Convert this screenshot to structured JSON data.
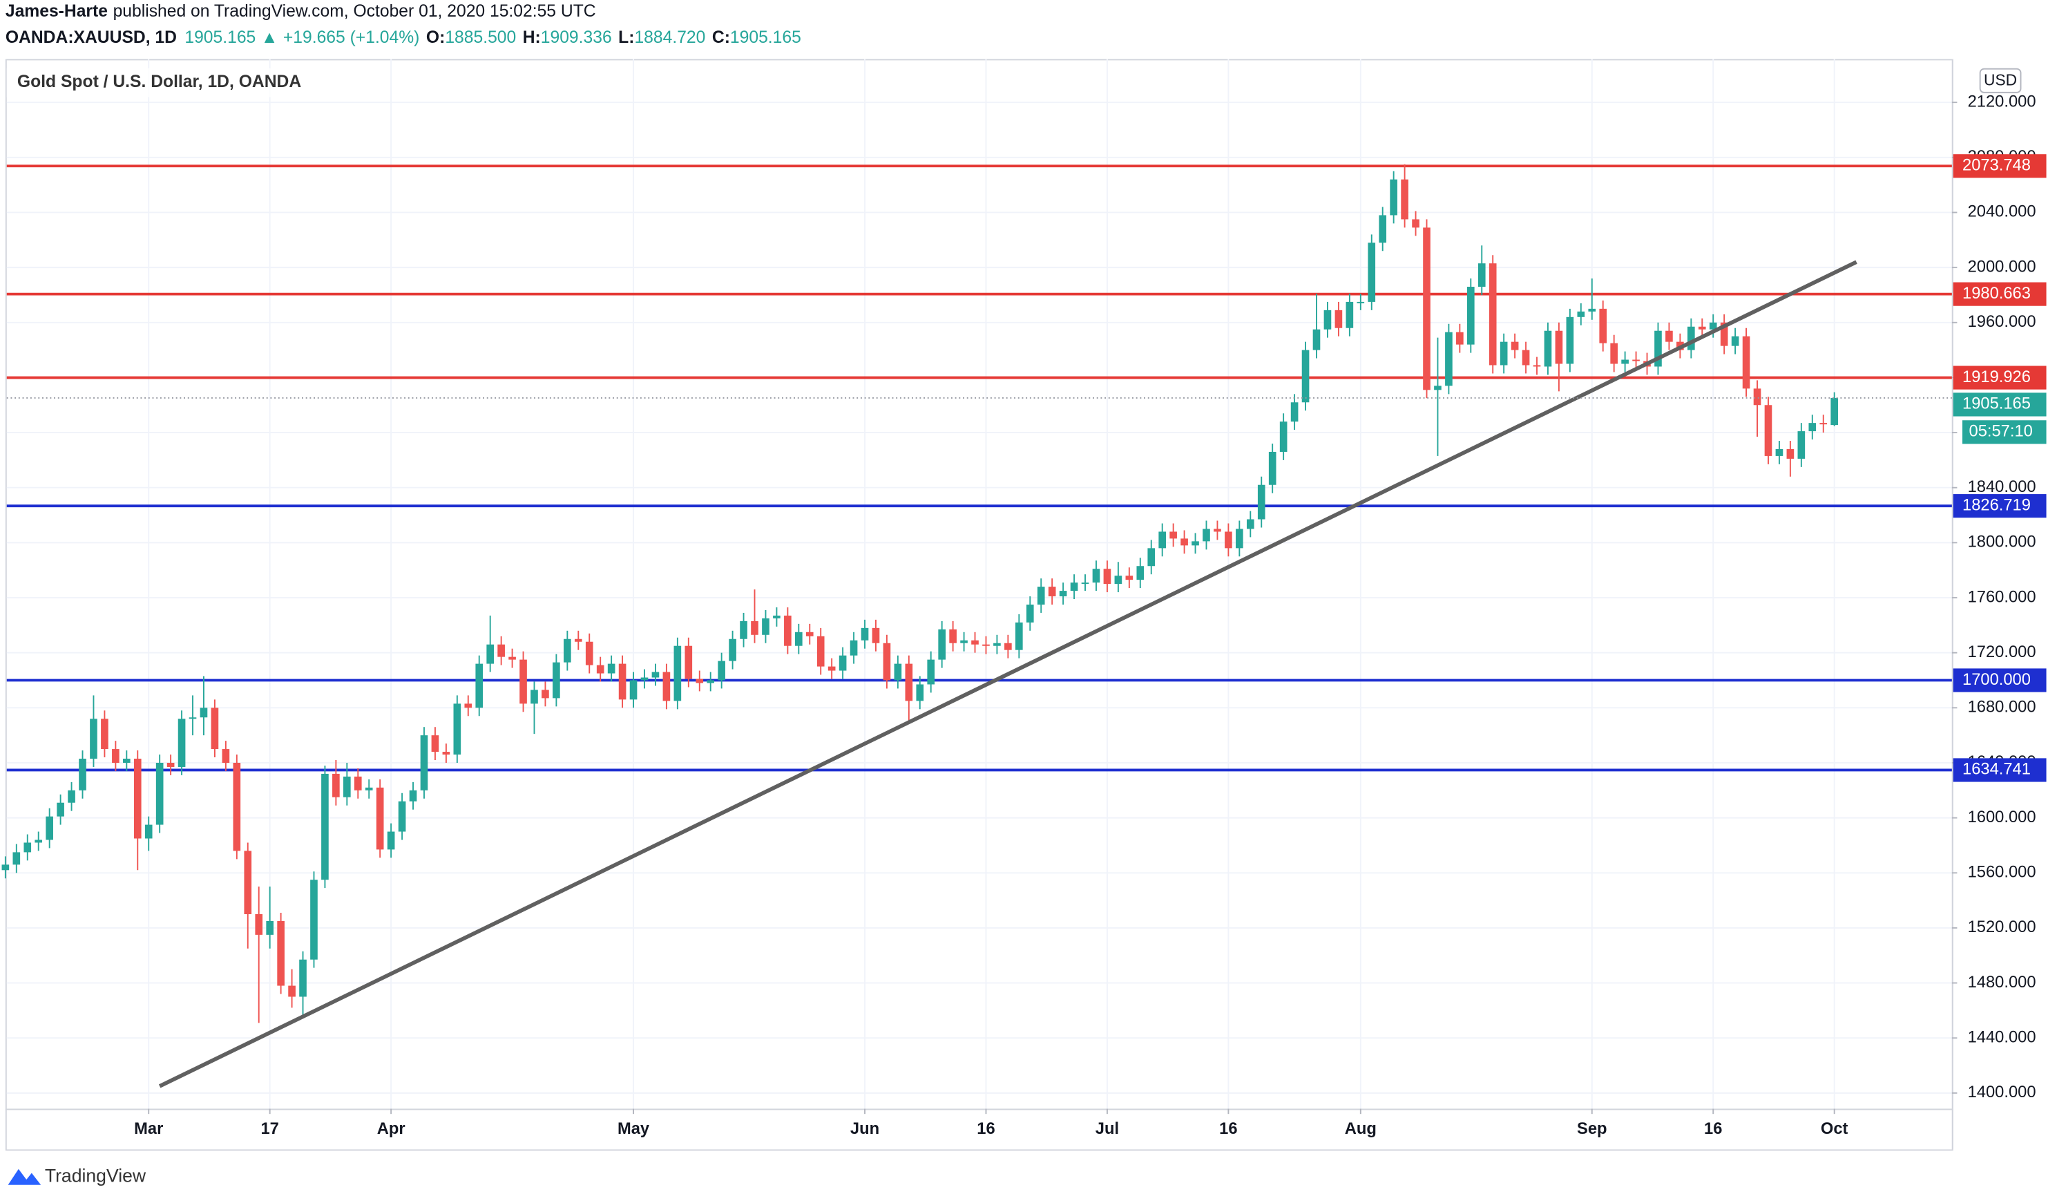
{
  "header": {
    "author": "James-Harte",
    "published": "published on TradingView.com, October 01, 2020 15:02:55 UTC",
    "symbol": "OANDA:XAUUSD, 1D",
    "last": "1905.165",
    "change": "+19.665 (+1.04%)",
    "ohlc": [
      {
        "label": "O:",
        "value": "1885.500"
      },
      {
        "label": "H:",
        "value": "1909.336"
      },
      {
        "label": "L:",
        "value": "1884.720"
      },
      {
        "label": "C:",
        "value": "1905.165"
      }
    ],
    "footer": "TradingView"
  },
  "chart_data": {
    "type": "candlestick",
    "title": "Gold Spot / U.S. Dollar, 1D, OANDA",
    "currency": "USD",
    "countdown": "05:57:10",
    "up_color": "#26a69a",
    "down_color": "#ef5350",
    "grid": true,
    "x": [
      "2020-02-12",
      "2020-02-13",
      "2020-02-14",
      "2020-02-17",
      "2020-02-18",
      "2020-02-19",
      "2020-02-20",
      "2020-02-21",
      "2020-02-24",
      "2020-02-25",
      "2020-02-26",
      "2020-02-27",
      "2020-02-28",
      "2020-03-02",
      "2020-03-03",
      "2020-03-04",
      "2020-03-05",
      "2020-03-06",
      "2020-03-09",
      "2020-03-10",
      "2020-03-11",
      "2020-03-12",
      "2020-03-13",
      "2020-03-16",
      "2020-03-17",
      "2020-03-18",
      "2020-03-19",
      "2020-03-20",
      "2020-03-23",
      "2020-03-24",
      "2020-03-25",
      "2020-03-26",
      "2020-03-27",
      "2020-03-30",
      "2020-03-31",
      "2020-04-01",
      "2020-04-02",
      "2020-04-03",
      "2020-04-06",
      "2020-04-07",
      "2020-04-08",
      "2020-04-09",
      "2020-04-10",
      "2020-04-13",
      "2020-04-14",
      "2020-04-15",
      "2020-04-16",
      "2020-04-17",
      "2020-04-20",
      "2020-04-21",
      "2020-04-22",
      "2020-04-23",
      "2020-04-24",
      "2020-04-27",
      "2020-04-28",
      "2020-04-29",
      "2020-04-30",
      "2020-05-01",
      "2020-05-04",
      "2020-05-05",
      "2020-05-06",
      "2020-05-07",
      "2020-05-08",
      "2020-05-11",
      "2020-05-12",
      "2020-05-13",
      "2020-05-14",
      "2020-05-15",
      "2020-05-18",
      "2020-05-19",
      "2020-05-20",
      "2020-05-21",
      "2020-05-22",
      "2020-05-25",
      "2020-05-26",
      "2020-05-27",
      "2020-05-28",
      "2020-05-29",
      "2020-06-01",
      "2020-06-02",
      "2020-06-03",
      "2020-06-04",
      "2020-06-05",
      "2020-06-08",
      "2020-06-09",
      "2020-06-10",
      "2020-06-11",
      "2020-06-12",
      "2020-06-15",
      "2020-06-16",
      "2020-06-17",
      "2020-06-18",
      "2020-06-19",
      "2020-06-22",
      "2020-06-23",
      "2020-06-24",
      "2020-06-25",
      "2020-06-26",
      "2020-06-29",
      "2020-06-30",
      "2020-07-01",
      "2020-07-02",
      "2020-07-03",
      "2020-07-06",
      "2020-07-07",
      "2020-07-08",
      "2020-07-09",
      "2020-07-10",
      "2020-07-13",
      "2020-07-14",
      "2020-07-15",
      "2020-07-16",
      "2020-07-17",
      "2020-07-20",
      "2020-07-21",
      "2020-07-22",
      "2020-07-23",
      "2020-07-24",
      "2020-07-27",
      "2020-07-28",
      "2020-07-29",
      "2020-07-30",
      "2020-07-31",
      "2020-08-03",
      "2020-08-04",
      "2020-08-05",
      "2020-08-06",
      "2020-08-07",
      "2020-08-10",
      "2020-08-11",
      "2020-08-12",
      "2020-08-13",
      "2020-08-14",
      "2020-08-17",
      "2020-08-18",
      "2020-08-19",
      "2020-08-20",
      "2020-08-21",
      "2020-08-24",
      "2020-08-25",
      "2020-08-26",
      "2020-08-27",
      "2020-08-28",
      "2020-08-31",
      "2020-09-01",
      "2020-09-02",
      "2020-09-03",
      "2020-09-04",
      "2020-09-07",
      "2020-09-08",
      "2020-09-09",
      "2020-09-10",
      "2020-09-11",
      "2020-09-14",
      "2020-09-15",
      "2020-09-16",
      "2020-09-17",
      "2020-09-18",
      "2020-09-21",
      "2020-09-22",
      "2020-09-23",
      "2020-09-24",
      "2020-09-25",
      "2020-09-28",
      "2020-09-29",
      "2020-09-30",
      "2020-10-01"
    ],
    "open": [
      1562,
      1566,
      1575,
      1582,
      1584,
      1601,
      1611,
      1620,
      1643,
      1672,
      1650,
      1640,
      1643,
      1585,
      1595,
      1640,
      1637,
      1672,
      1673,
      1680,
      1650,
      1640,
      1576,
      1530,
      1515,
      1525,
      1478,
      1470,
      1497,
      1555,
      1632,
      1615,
      1630,
      1620,
      1622,
      1577,
      1590,
      1612,
      1620,
      1660,
      1648,
      1646,
      1683,
      1680,
      1712,
      1726,
      1717,
      1715,
      1683,
      1693,
      1687,
      1713,
      1730,
      1728,
      1711,
      1705,
      1712,
      1686,
      1700,
      1702,
      1706,
      1685,
      1725,
      1701,
      1698,
      1700,
      1714,
      1730,
      1743,
      1733,
      1745,
      1747,
      1725,
      1735,
      1732,
      1710,
      1707,
      1718,
      1729,
      1738,
      1727,
      1700,
      1712,
      1685,
      1697,
      1715,
      1737,
      1727,
      1729,
      1726,
      1725,
      1727,
      1722,
      1742,
      1755,
      1768,
      1761,
      1765,
      1771,
      1771,
      1781,
      1770,
      1776,
      1773,
      1783,
      1796,
      1808,
      1803,
      1798,
      1801,
      1810,
      1808,
      1796,
      1810,
      1817,
      1842,
      1866,
      1888,
      1902,
      1940,
      1955,
      1969,
      1956,
      1975,
      1975,
      2018,
      2038,
      2064,
      2035,
      2029,
      1911,
      1914,
      1953,
      1944,
      1986,
      2003,
      1929,
      1946,
      1940,
      1929,
      1928,
      1954,
      1930,
      1964,
      1968,
      1970,
      1945,
      1930,
      1933,
      1932,
      1928,
      1954,
      1946,
      1940,
      1957,
      1955,
      1960,
      1943,
      1950,
      1912,
      1900,
      1863,
      1868,
      1861,
      1881,
      1887,
      1885.5
    ],
    "high": [
      1572,
      1581,
      1588,
      1590,
      1607,
      1617,
      1626,
      1649,
      1689,
      1678,
      1656,
      1649,
      1649,
      1601,
      1646,
      1646,
      1678,
      1689,
      1703,
      1686,
      1656,
      1646,
      1582,
      1550,
      1550,
      1531,
      1490,
      1503,
      1561,
      1638,
      1642,
      1640,
      1636,
      1628,
      1628,
      1596,
      1618,
      1626,
      1666,
      1666,
      1654,
      1689,
      1689,
      1718,
      1747,
      1732,
      1723,
      1721,
      1699,
      1699,
      1719,
      1736,
      1736,
      1734,
      1717,
      1718,
      1718,
      1706,
      1708,
      1712,
      1712,
      1731,
      1731,
      1707,
      1706,
      1720,
      1736,
      1749,
      1766,
      1751,
      1753,
      1753,
      1741,
      1741,
      1738,
      1716,
      1724,
      1735,
      1744,
      1744,
      1733,
      1718,
      1718,
      1703,
      1721,
      1743,
      1743,
      1735,
      1735,
      1732,
      1733,
      1733,
      1748,
      1761,
      1774,
      1774,
      1771,
      1777,
      1777,
      1787,
      1787,
      1786,
      1782,
      1789,
      1802,
      1814,
      1814,
      1809,
      1807,
      1816,
      1816,
      1814,
      1816,
      1823,
      1848,
      1872,
      1894,
      1908,
      1946,
      1981,
      1975,
      1975,
      1981,
      1981,
      2024,
      2044,
      2070,
      2075,
      2041,
      2035,
      1949,
      1959,
      1959,
      1992,
      2016,
      2009,
      1952,
      1952,
      1946,
      1935,
      1960,
      1960,
      1970,
      1974,
      1992,
      1976,
      1951,
      1939,
      1939,
      1938,
      1960,
      1960,
      1952,
      1963,
      1963,
      1966,
      1966,
      1956,
      1956,
      1918,
      1906,
      1874,
      1874,
      1887,
      1893,
      1893,
      1909.336
    ],
    "low": [
      1556,
      1560,
      1569,
      1576,
      1578,
      1595,
      1605,
      1614,
      1637,
      1644,
      1634,
      1634,
      1562,
      1576,
      1589,
      1631,
      1631,
      1660,
      1660,
      1644,
      1634,
      1570,
      1505,
      1451,
      1505,
      1472,
      1462,
      1455,
      1491,
      1549,
      1609,
      1609,
      1614,
      1614,
      1571,
      1571,
      1584,
      1606,
      1614,
      1642,
      1640,
      1640,
      1674,
      1674,
      1706,
      1711,
      1709,
      1677,
      1661,
      1681,
      1681,
      1707,
      1722,
      1705,
      1699,
      1699,
      1680,
      1680,
      1694,
      1696,
      1679,
      1679,
      1695,
      1692,
      1692,
      1694,
      1708,
      1724,
      1727,
      1727,
      1739,
      1719,
      1719,
      1726,
      1704,
      1701,
      1701,
      1712,
      1723,
      1721,
      1694,
      1694,
      1670,
      1679,
      1691,
      1709,
      1721,
      1721,
      1720,
      1719,
      1719,
      1716,
      1716,
      1736,
      1749,
      1755,
      1755,
      1759,
      1765,
      1765,
      1764,
      1764,
      1767,
      1767,
      1777,
      1790,
      1797,
      1792,
      1792,
      1795,
      1802,
      1790,
      1790,
      1804,
      1811,
      1836,
      1860,
      1882,
      1896,
      1934,
      1949,
      1950,
      1950,
      1969,
      1969,
      2012,
      2032,
      2029,
      2023,
      1905,
      1863,
      1908,
      1938,
      1938,
      1980,
      1923,
      1923,
      1934,
      1923,
      1922,
      1922,
      1910,
      1924,
      1958,
      1962,
      1939,
      1924,
      1924,
      1926,
      1922,
      1922,
      1940,
      1934,
      1934,
      1949,
      1949,
      1937,
      1937,
      1906,
      1877,
      1857,
      1857,
      1848,
      1855,
      1875,
      1880,
      1884.72
    ],
    "close": [
      1566,
      1575,
      1582,
      1584,
      1601,
      1611,
      1620,
      1643,
      1672,
      1650,
      1640,
      1643,
      1585,
      1595,
      1640,
      1637,
      1672,
      1673,
      1680,
      1650,
      1640,
      1576,
      1530,
      1515,
      1525,
      1478,
      1470,
      1497,
      1555,
      1632,
      1615,
      1630,
      1620,
      1622,
      1577,
      1590,
      1612,
      1620,
      1660,
      1648,
      1646,
      1683,
      1680,
      1712,
      1726,
      1717,
      1715,
      1683,
      1693,
      1687,
      1713,
      1730,
      1728,
      1711,
      1705,
      1712,
      1686,
      1700,
      1702,
      1706,
      1685,
      1725,
      1701,
      1698,
      1700,
      1714,
      1730,
      1743,
      1733,
      1745,
      1747,
      1725,
      1735,
      1732,
      1710,
      1707,
      1718,
      1729,
      1738,
      1727,
      1700,
      1712,
      1685,
      1697,
      1715,
      1737,
      1727,
      1729,
      1726,
      1725,
      1727,
      1722,
      1742,
      1755,
      1768,
      1761,
      1765,
      1771,
      1771,
      1781,
      1770,
      1776,
      1773,
      1783,
      1796,
      1808,
      1803,
      1798,
      1801,
      1810,
      1808,
      1796,
      1810,
      1817,
      1842,
      1866,
      1888,
      1902,
      1940,
      1955,
      1969,
      1956,
      1975,
      1975,
      2018,
      2038,
      2064,
      2035,
      2029,
      1911,
      1914,
      1953,
      1944,
      1986,
      2003,
      1929,
      1946,
      1940,
      1929,
      1928,
      1954,
      1930,
      1964,
      1968,
      1970,
      1945,
      1930,
      1933,
      1932,
      1928,
      1954,
      1946,
      1940,
      1957,
      1955,
      1960,
      1943,
      1950,
      1912,
      1900,
      1863,
      1868,
      1861,
      1881,
      1887,
      1886,
      1905.165
    ],
    "ylim": [
      1388.6,
      2151.5
    ],
    "yticks": [
      {
        "value": 1400,
        "label": "1400.000"
      },
      {
        "value": 1440,
        "label": "1440.000"
      },
      {
        "value": 1480,
        "label": "1480.000"
      },
      {
        "value": 1520,
        "label": "1520.000"
      },
      {
        "value": 1560,
        "label": "1560.000"
      },
      {
        "value": 1600,
        "label": "1600.000"
      },
      {
        "value": 1640,
        "label": "1640.000"
      },
      {
        "value": 1680,
        "label": "1680.000"
      },
      {
        "value": 1720,
        "label": "1720.000"
      },
      {
        "value": 1760,
        "label": "1760.000"
      },
      {
        "value": 1800,
        "label": "1800.000"
      },
      {
        "value": 1840,
        "label": "1840.000"
      },
      {
        "value": 1880,
        "label": "1880.000"
      },
      {
        "value": 1920,
        "label": "1920.000"
      },
      {
        "value": 1960,
        "label": "1960.000"
      },
      {
        "value": 2000,
        "label": "2000.000"
      },
      {
        "value": 2040,
        "label": "2040.000"
      },
      {
        "value": 2080,
        "label": "2080.000"
      },
      {
        "value": 2120,
        "label": "2120.000"
      }
    ],
    "xticks": [
      {
        "value": "2020-03-02",
        "label": "Mar"
      },
      {
        "value": "2020-03-17",
        "label": "17"
      },
      {
        "value": "2020-04-01",
        "label": "Apr"
      },
      {
        "value": "2020-05-01",
        "label": "May"
      },
      {
        "value": "2020-06-01",
        "label": "Jun"
      },
      {
        "value": "2020-06-16",
        "label": "16"
      },
      {
        "value": "2020-07-01",
        "label": "Jul"
      },
      {
        "value": "2020-07-16",
        "label": "16"
      },
      {
        "value": "2020-08-03",
        "label": "Aug"
      },
      {
        "value": "2020-09-01",
        "label": "Sep"
      },
      {
        "value": "2020-09-16",
        "label": "16"
      },
      {
        "value": "2020-10-01",
        "label": "Oct"
      }
    ],
    "levels": [
      {
        "value": 2073.748,
        "color": "#e53935"
      },
      {
        "value": 1980.663,
        "color": "#e53935"
      },
      {
        "value": 1919.926,
        "color": "#e53935"
      },
      {
        "value": 1826.719,
        "color": "#1e2fd0"
      },
      {
        "value": 1700,
        "label": "1700.000",
        "color": "#1e2fd0"
      },
      {
        "value": 1634.741,
        "color": "#1e2fd0"
      }
    ],
    "last_price": {
      "value": 1905.165,
      "label": "1905.165"
    },
    "trendline": {
      "x": [
        "2020-03-03",
        "2020-10-05"
      ],
      "values": [
        1405,
        2004
      ],
      "color": "#606060"
    }
  }
}
